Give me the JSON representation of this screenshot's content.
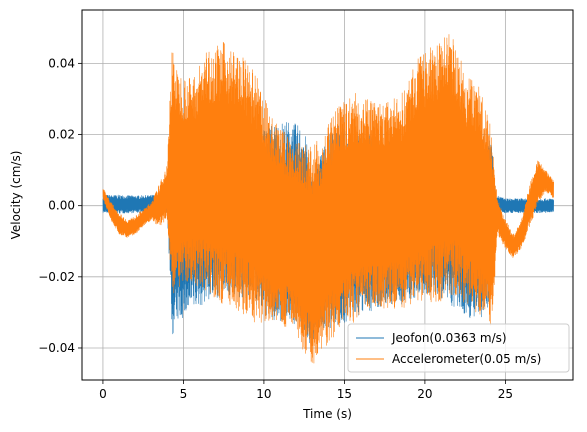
{
  "chart_data": {
    "type": "line",
    "title": "",
    "xlabel": "Time (s)",
    "ylabel": "Velocity (cm/s)",
    "xlim": [
      -1.3,
      29.2
    ],
    "ylim": [
      -0.049,
      0.055
    ],
    "xticks": [
      0,
      5,
      10,
      15,
      20,
      25
    ],
    "xtick_labels": [
      "0",
      "5",
      "10",
      "15",
      "20",
      "25"
    ],
    "yticks": [
      -0.04,
      -0.02,
      0.0,
      0.02,
      0.04
    ],
    "ytick_labels": [
      "−0.04",
      "−0.02",
      "0.00",
      "0.02",
      "0.04"
    ],
    "grid": true,
    "legend_position": "lower-right",
    "series": [
      {
        "name": "Jeofon(0.0363 m/s)",
        "color": "#1f77b4",
        "envelope": {
          "t": [
            0.0,
            1.0,
            2.0,
            3.0,
            4.0,
            4.3,
            4.6,
            5.5,
            6.5,
            7.5,
            8.5,
            9.5,
            10.5,
            11.5,
            12.5,
            13.0,
            13.5,
            14.5,
            15.5,
            16.5,
            17.5,
            18.5,
            19.5,
            20.5,
            21.5,
            22.5,
            23.5,
            24.1,
            24.4,
            25.0,
            26.0,
            27.0,
            28.0
          ],
          "upper": [
            0.003,
            0.003,
            0.0028,
            0.003,
            0.003,
            0.02,
            0.022,
            0.023,
            0.024,
            0.022,
            0.02,
            0.021,
            0.023,
            0.024,
            0.022,
            0.008,
            0.015,
            0.023,
            0.02,
            0.02,
            0.019,
            0.02,
            0.019,
            0.019,
            0.018,
            0.02,
            0.02,
            0.022,
            0.003,
            0.002,
            0.002,
            0.002,
            0.002
          ],
          "lower": [
            -0.002,
            -0.0022,
            -0.002,
            -0.002,
            -0.002,
            -0.037,
            -0.033,
            -0.03,
            -0.027,
            -0.025,
            -0.026,
            -0.028,
            -0.033,
            -0.032,
            -0.036,
            -0.04,
            -0.035,
            -0.034,
            -0.032,
            -0.03,
            -0.028,
            -0.028,
            -0.026,
            -0.025,
            -0.028,
            -0.031,
            -0.033,
            -0.027,
            -0.002,
            -0.002,
            -0.002,
            -0.002,
            -0.002
          ]
        }
      },
      {
        "name": "Accelerometer(0.05 m/s)",
        "color": "#ff7f0e",
        "envelope": {
          "t": [
            0.0,
            0.5,
            1.0,
            1.5,
            2.0,
            2.5,
            3.0,
            3.5,
            4.0,
            4.3,
            4.6,
            5.5,
            6.5,
            7.5,
            8.5,
            9.5,
            10.5,
            11.0,
            11.5,
            12.0,
            12.5,
            13.0,
            13.5,
            14.5,
            15.5,
            16.5,
            17.5,
            18.5,
            19.5,
            20.5,
            21.0,
            21.5,
            22.0,
            22.5,
            23.5,
            24.2,
            24.5,
            25.0,
            25.5,
            26.0,
            26.5,
            27.0,
            27.5,
            28.0
          ],
          "upper": [
            0.005,
            0.001,
            -0.002,
            -0.004,
            -0.003,
            -0.001,
            0.001,
            0.006,
            0.012,
            0.047,
            0.038,
            0.036,
            0.044,
            0.046,
            0.043,
            0.037,
            0.025,
            0.022,
            0.02,
            0.018,
            0.018,
            0.017,
            0.019,
            0.027,
            0.032,
            0.03,
            0.029,
            0.031,
            0.041,
            0.045,
            0.047,
            0.049,
            0.045,
            0.037,
            0.034,
            0.02,
            0.002,
            -0.004,
            -0.008,
            -0.004,
            0.006,
            0.013,
            0.01,
            0.007
          ],
          "lower": [
            0.002,
            -0.004,
            -0.008,
            -0.009,
            -0.008,
            -0.006,
            -0.004,
            -0.006,
            -0.004,
            -0.027,
            -0.023,
            -0.022,
            -0.025,
            -0.028,
            -0.03,
            -0.033,
            -0.033,
            -0.035,
            -0.034,
            -0.037,
            -0.041,
            -0.045,
            -0.042,
            -0.036,
            -0.033,
            -0.03,
            -0.029,
            -0.029,
            -0.028,
            -0.027,
            -0.027,
            -0.025,
            -0.026,
            -0.028,
            -0.032,
            -0.034,
            -0.008,
            -0.012,
            -0.015,
            -0.012,
            -0.006,
            0.0,
            0.004,
            0.002
          ]
        }
      }
    ]
  }
}
